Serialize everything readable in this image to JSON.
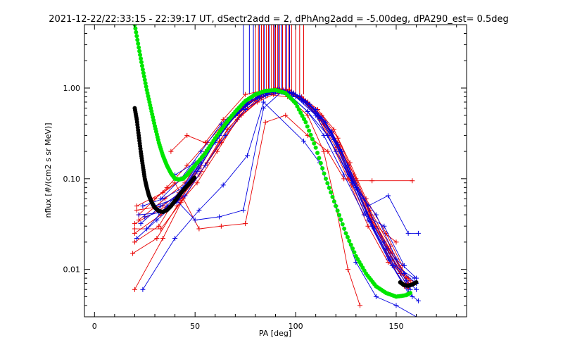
{
  "chart_data": {
    "type": "scatter",
    "title": "2021-12-22/22:33:15 - 22:39:17 UT, dSectr2add = 2, dPhAng2add = -5.00deg, dPA290_est=   0.5deg",
    "xlabel": "PA [deg]",
    "ylabel": "nflux [#/(cm2 s sr MeV)]",
    "xlim": [
      -5,
      185
    ],
    "ylim": [
      0.003,
      5
    ],
    "yscale": "log",
    "xticks": [
      0,
      50,
      100,
      150
    ],
    "xtick_labels": [
      "0",
      "50",
      "100",
      "150"
    ],
    "yticks": [
      0.01,
      0.1,
      1
    ],
    "ytick_labels": [
      "0.01",
      "0.10",
      "1.00"
    ],
    "grid": false,
    "legend": "none",
    "colors": {
      "red": "#e80000",
      "blue": "#0000e0",
      "green": "#00e600",
      "black": "#000000"
    },
    "red_vertical_lines_x": [
      80,
      81.5,
      83,
      84,
      85.5,
      86.5,
      88,
      89,
      90,
      91,
      92,
      93.5,
      95,
      96.5,
      98,
      100,
      102,
      104
    ],
    "blue_vertical_lines_x": [
      74,
      77,
      79,
      82,
      84.5,
      87,
      89.5,
      91.5,
      93,
      95.5,
      97
    ],
    "green_fit": {
      "x": [
        20,
        22,
        24,
        26,
        28,
        30,
        32,
        34,
        36,
        38,
        40,
        42,
        44,
        46,
        48,
        50,
        55,
        60,
        65,
        70,
        75,
        80,
        85,
        90,
        95,
        100,
        105,
        110,
        115,
        120,
        125,
        130,
        135,
        140,
        145,
        150,
        155,
        157
      ],
      "y": [
        5,
        2.8,
        1.6,
        0.95,
        0.6,
        0.38,
        0.25,
        0.18,
        0.14,
        0.115,
        0.1,
        0.098,
        0.1,
        0.11,
        0.125,
        0.14,
        0.19,
        0.28,
        0.4,
        0.55,
        0.72,
        0.85,
        0.93,
        0.95,
        0.88,
        0.68,
        0.42,
        0.22,
        0.1,
        0.05,
        0.025,
        0.014,
        0.009,
        0.0065,
        0.0055,
        0.005,
        0.0052,
        0.0055
      ]
    },
    "black_fit": {
      "x": [
        20,
        21,
        22,
        23,
        24,
        25,
        26,
        27,
        28,
        29,
        30,
        32,
        34,
        36,
        38,
        40,
        42,
        44,
        46,
        48,
        50,
        152,
        154,
        156,
        158,
        160
      ],
      "y": [
        0.6,
        0.45,
        0.3,
        0.2,
        0.14,
        0.1,
        0.08,
        0.066,
        0.058,
        0.052,
        0.048,
        0.044,
        0.043,
        0.045,
        0.05,
        0.057,
        0.065,
        0.074,
        0.083,
        0.093,
        0.105,
        0.0072,
        0.0067,
        0.0066,
        0.0068,
        0.0072
      ]
    },
    "series": [
      {
        "color": "red",
        "x": [
          20,
          32,
          42,
          52,
          62,
          72,
          80,
          88,
          95,
          102,
          110,
          118,
          126,
          134,
          144,
          152,
          158
        ],
        "y": [
          0.032,
          0.045,
          0.058,
          0.11,
          0.26,
          0.5,
          0.72,
          0.9,
          0.95,
          0.78,
          0.55,
          0.32,
          0.12,
          0.05,
          0.02,
          0.009,
          0.007
        ]
      },
      {
        "color": "red",
        "x": [
          20,
          33,
          43,
          53,
          63,
          73,
          82,
          90,
          97,
          104,
          112,
          120,
          128,
          136,
          146,
          154
        ],
        "y": [
          0.025,
          0.04,
          0.06,
          0.14,
          0.33,
          0.6,
          0.82,
          0.95,
          0.88,
          0.7,
          0.45,
          0.22,
          0.085,
          0.035,
          0.014,
          0.0065
        ]
      },
      {
        "color": "red",
        "x": [
          21,
          34,
          44,
          54,
          64,
          74,
          83,
          91,
          98,
          105,
          113,
          121,
          129,
          137,
          147,
          155
        ],
        "y": [
          0.045,
          0.05,
          0.075,
          0.17,
          0.36,
          0.58,
          0.88,
          0.98,
          0.9,
          0.72,
          0.5,
          0.28,
          0.11,
          0.045,
          0.018,
          0.008
        ]
      },
      {
        "color": "red",
        "x": [
          19,
          31,
          41,
          51,
          61,
          71,
          81,
          89,
          96,
          103,
          111,
          119,
          127,
          135,
          145,
          153
        ],
        "y": [
          0.015,
          0.022,
          0.05,
          0.09,
          0.2,
          0.45,
          0.7,
          0.85,
          0.92,
          0.8,
          0.58,
          0.35,
          0.15,
          0.06,
          0.025,
          0.011
        ]
      },
      {
        "color": "red",
        "x": [
          20,
          32,
          42,
          52,
          62,
          72,
          82,
          90,
          97,
          104,
          112,
          120,
          128,
          136,
          146,
          156
        ],
        "y": [
          0.02,
          0.03,
          0.07,
          0.13,
          0.3,
          0.55,
          0.85,
          1.0,
          0.95,
          0.75,
          0.48,
          0.26,
          0.1,
          0.04,
          0.016,
          0.007
        ]
      },
      {
        "color": "red",
        "x": [
          22,
          35,
          45,
          55,
          65,
          75,
          84,
          92,
          99,
          106,
          114,
          122,
          130,
          138,
          148,
          156
        ],
        "y": [
          0.035,
          0.06,
          0.09,
          0.2,
          0.42,
          0.65,
          0.9,
          0.95,
          0.85,
          0.65,
          0.4,
          0.2,
          0.085,
          0.033,
          0.013,
          0.0062
        ]
      },
      {
        "color": "red",
        "x": [
          20,
          33,
          43,
          53,
          63,
          73,
          83,
          91,
          98,
          105,
          113,
          121,
          129,
          137,
          147,
          157
        ],
        "y": [
          0.028,
          0.028,
          0.055,
          0.12,
          0.25,
          0.5,
          0.78,
          0.92,
          0.88,
          0.7,
          0.47,
          0.25,
          0.1,
          0.04,
          0.016,
          0.0075
        ]
      },
      {
        "color": "red",
        "x": [
          21,
          34,
          44,
          54,
          64,
          74,
          84,
          92,
          99,
          106,
          114,
          122,
          130,
          138,
          148,
          156
        ],
        "y": [
          0.05,
          0.07,
          0.1,
          0.18,
          0.38,
          0.62,
          0.86,
          0.97,
          0.88,
          0.7,
          0.44,
          0.23,
          0.09,
          0.037,
          0.015,
          0.0068
        ]
      },
      {
        "color": "red",
        "x": [
          30,
          40,
          52,
          63,
          75,
          85,
          95,
          106,
          116,
          124,
          128,
          138,
          158
        ],
        "y": [
          0.06,
          0.09,
          0.028,
          0.03,
          0.032,
          0.42,
          0.5,
          0.3,
          0.2,
          0.1,
          0.095,
          0.095,
          0.095
        ]
      },
      {
        "color": "red",
        "x": [
          20,
          34,
          44,
          56,
          66,
          76,
          86,
          96,
          106,
          114,
          120,
          126,
          132
        ],
        "y": [
          0.006,
          0.022,
          0.06,
          0.15,
          0.35,
          0.6,
          0.85,
          0.8,
          0.5,
          0.2,
          0.05,
          0.01,
          0.004
        ]
      },
      {
        "color": "red",
        "x": [
          22,
          36,
          46,
          56,
          66,
          76,
          86,
          96,
          106,
          116,
          126,
          136,
          146,
          156
        ],
        "y": [
          0.04,
          0.08,
          0.14,
          0.25,
          0.45,
          0.7,
          0.85,
          0.88,
          0.7,
          0.3,
          0.1,
          0.03,
          0.012,
          0.008
        ]
      },
      {
        "color": "red",
        "x": [
          38,
          46,
          55,
          64,
          75,
          83,
          90,
          98,
          108,
          118,
          130,
          140,
          150
        ],
        "y": [
          0.2,
          0.3,
          0.25,
          0.45,
          0.85,
          0.93,
          0.98,
          0.9,
          0.62,
          0.33,
          0.1,
          0.03,
          0.02
        ]
      },
      {
        "color": "blue",
        "x": [
          22,
          32,
          42,
          52,
          62,
          72,
          82,
          90,
          97,
          104,
          112,
          120,
          128,
          136,
          146,
          156,
          161
        ],
        "y": [
          0.04,
          0.042,
          0.06,
          0.13,
          0.3,
          0.56,
          0.8,
          0.92,
          0.88,
          0.7,
          0.46,
          0.24,
          0.09,
          0.035,
          0.013,
          0.0055,
          0.0045
        ]
      },
      {
        "color": "blue",
        "x": [
          23,
          33,
          43,
          53,
          63,
          73,
          83,
          91,
          98,
          105,
          113,
          121,
          129,
          137,
          147,
          157
        ],
        "y": [
          0.032,
          0.05,
          0.07,
          0.15,
          0.34,
          0.62,
          0.85,
          0.95,
          0.9,
          0.72,
          0.47,
          0.24,
          0.088,
          0.034,
          0.013,
          0.006
        ]
      },
      {
        "color": "blue",
        "x": [
          24,
          34,
          44,
          54,
          64,
          74,
          84,
          92,
          99,
          106,
          114,
          122,
          130,
          138,
          148,
          158
        ],
        "y": [
          0.05,
          0.06,
          0.08,
          0.18,
          0.38,
          0.65,
          0.88,
          0.96,
          0.88,
          0.68,
          0.43,
          0.21,
          0.08,
          0.03,
          0.011,
          0.005
        ]
      },
      {
        "color": "blue",
        "x": [
          21,
          31,
          41,
          51,
          61,
          71,
          81,
          89,
          96,
          103,
          111,
          119,
          127,
          135,
          145,
          155,
          160
        ],
        "y": [
          0.022,
          0.035,
          0.055,
          0.12,
          0.28,
          0.52,
          0.78,
          0.9,
          0.9,
          0.74,
          0.5,
          0.27,
          0.11,
          0.043,
          0.017,
          0.0075,
          0.006
        ]
      },
      {
        "color": "blue",
        "x": [
          25,
          35,
          45,
          55,
          65,
          75,
          85,
          93,
          100,
          107,
          115,
          123,
          131,
          139,
          149,
          159
        ],
        "y": [
          0.038,
          0.045,
          0.065,
          0.14,
          0.3,
          0.58,
          0.82,
          0.9,
          0.85,
          0.66,
          0.42,
          0.2,
          0.075,
          0.028,
          0.011,
          0.008
        ]
      },
      {
        "color": "blue",
        "x": [
          24,
          40,
          52,
          64,
          76,
          84,
          104,
          112,
          120,
          130,
          140,
          150,
          160
        ],
        "y": [
          0.006,
          0.022,
          0.045,
          0.085,
          0.18,
          0.7,
          0.26,
          0.15,
          0.05,
          0.012,
          0.005,
          0.004,
          0.003
        ]
      },
      {
        "color": "blue",
        "x": [
          30,
          40,
          50,
          62,
          74,
          84,
          94,
          106,
          116,
          126,
          136,
          146,
          156,
          161
        ],
        "y": [
          0.05,
          0.06,
          0.035,
          0.038,
          0.045,
          0.6,
          0.95,
          0.55,
          0.3,
          0.11,
          0.05,
          0.065,
          0.025,
          0.025
        ]
      },
      {
        "color": "blue",
        "x": [
          33,
          43,
          53,
          63,
          73,
          82,
          90,
          98,
          106,
          114,
          124,
          134,
          144,
          154
        ],
        "y": [
          0.06,
          0.1,
          0.2,
          0.4,
          0.65,
          0.88,
          0.9,
          0.8,
          0.55,
          0.3,
          0.11,
          0.04,
          0.03,
          0.011
        ]
      },
      {
        "color": "blue",
        "x": [
          26,
          36,
          46,
          56,
          66,
          76,
          86,
          94,
          102,
          110,
          118,
          126,
          134,
          144,
          154,
          160
        ],
        "y": [
          0.028,
          0.05,
          0.09,
          0.2,
          0.4,
          0.66,
          0.87,
          0.93,
          0.82,
          0.58,
          0.33,
          0.14,
          0.06,
          0.02,
          0.009,
          0.007
        ]
      },
      {
        "color": "blue",
        "x": [
          40,
          50,
          60,
          70,
          80,
          90,
          100,
          110,
          120,
          130,
          140,
          150,
          160
        ],
        "y": [
          0.11,
          0.15,
          0.25,
          0.5,
          0.82,
          0.92,
          0.8,
          0.5,
          0.2,
          0.08,
          0.04,
          0.013,
          0.008
        ]
      }
    ]
  }
}
